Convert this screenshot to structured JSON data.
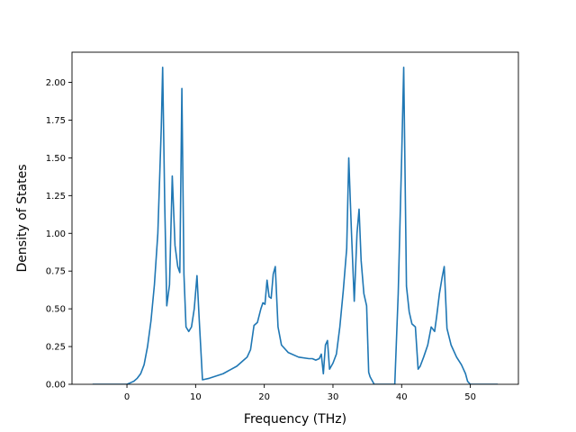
{
  "chart_data": {
    "type": "line",
    "title": "",
    "xlabel": "Frequency (THz)",
    "ylabel": "Density of States",
    "xlim": [
      -8,
      57
    ],
    "ylim": [
      0,
      2.2
    ],
    "grid": false,
    "x_ticks": [
      0,
      10,
      20,
      30,
      40,
      50
    ],
    "x_tick_labels": [
      "0",
      "10",
      "20",
      "30",
      "40",
      "50"
    ],
    "y_ticks": [
      0.0,
      0.25,
      0.5,
      0.75,
      1.0,
      1.25,
      1.5,
      1.75,
      2.0
    ],
    "y_tick_labels": [
      "0.00",
      "0.25",
      "0.50",
      "0.75",
      "1.00",
      "1.25",
      "1.50",
      "1.75",
      "2.00"
    ],
    "series": [
      {
        "color": "#1f77b4",
        "x": [
          -5.0,
          0.0,
          0.5,
          1.0,
          1.5,
          2.0,
          2.5,
          3.0,
          3.5,
          4.0,
          4.5,
          5.0,
          5.2,
          5.5,
          5.8,
          6.2,
          6.6,
          7.0,
          7.4,
          7.7,
          8.0,
          8.3,
          8.6,
          9.0,
          9.4,
          9.8,
          10.2,
          10.5,
          11.0,
          12.0,
          14.0,
          16.0,
          17.0,
          17.5,
          18.0,
          18.5,
          19.0,
          19.5,
          19.8,
          20.1,
          20.4,
          20.7,
          21.0,
          21.3,
          21.6,
          22.0,
          22.5,
          23.5,
          25.0,
          26.5,
          27.0,
          27.5,
          28.0,
          28.3,
          28.6,
          28.9,
          29.2,
          29.5,
          30.0,
          30.5,
          31.0,
          31.5,
          32.0,
          32.3,
          32.7,
          33.1,
          33.5,
          33.8,
          34.1,
          34.5,
          34.9,
          35.2,
          35.4,
          36.0,
          38.0,
          39.0,
          39.5,
          40.0,
          40.3,
          40.7,
          41.1,
          41.5,
          42.0,
          42.4,
          42.7,
          43.2,
          43.8,
          44.3,
          44.8,
          45.1,
          45.5,
          45.9,
          46.2,
          46.6,
          47.2,
          48.0,
          48.7,
          49.0,
          49.3,
          49.6,
          50.0,
          54.0
        ],
        "y": [
          0.0,
          0.0,
          0.01,
          0.02,
          0.04,
          0.07,
          0.13,
          0.25,
          0.42,
          0.66,
          1.0,
          1.7,
          2.1,
          1.2,
          0.52,
          0.66,
          1.38,
          0.92,
          0.78,
          0.74,
          1.96,
          0.73,
          0.38,
          0.35,
          0.38,
          0.5,
          0.72,
          0.45,
          0.03,
          0.04,
          0.07,
          0.12,
          0.16,
          0.18,
          0.23,
          0.39,
          0.41,
          0.5,
          0.54,
          0.53,
          0.69,
          0.58,
          0.57,
          0.73,
          0.78,
          0.38,
          0.26,
          0.21,
          0.18,
          0.17,
          0.17,
          0.16,
          0.17,
          0.2,
          0.07,
          0.26,
          0.29,
          0.1,
          0.14,
          0.2,
          0.38,
          0.62,
          0.9,
          1.5,
          1.0,
          0.55,
          1.0,
          1.16,
          0.82,
          0.6,
          0.52,
          0.08,
          0.05,
          0.0,
          0.0,
          0.0,
          0.6,
          1.5,
          2.1,
          0.65,
          0.48,
          0.4,
          0.38,
          0.1,
          0.12,
          0.18,
          0.26,
          0.38,
          0.35,
          0.45,
          0.6,
          0.71,
          0.78,
          0.37,
          0.26,
          0.18,
          0.13,
          0.1,
          0.07,
          0.02,
          0.0,
          0.0
        ]
      }
    ]
  }
}
